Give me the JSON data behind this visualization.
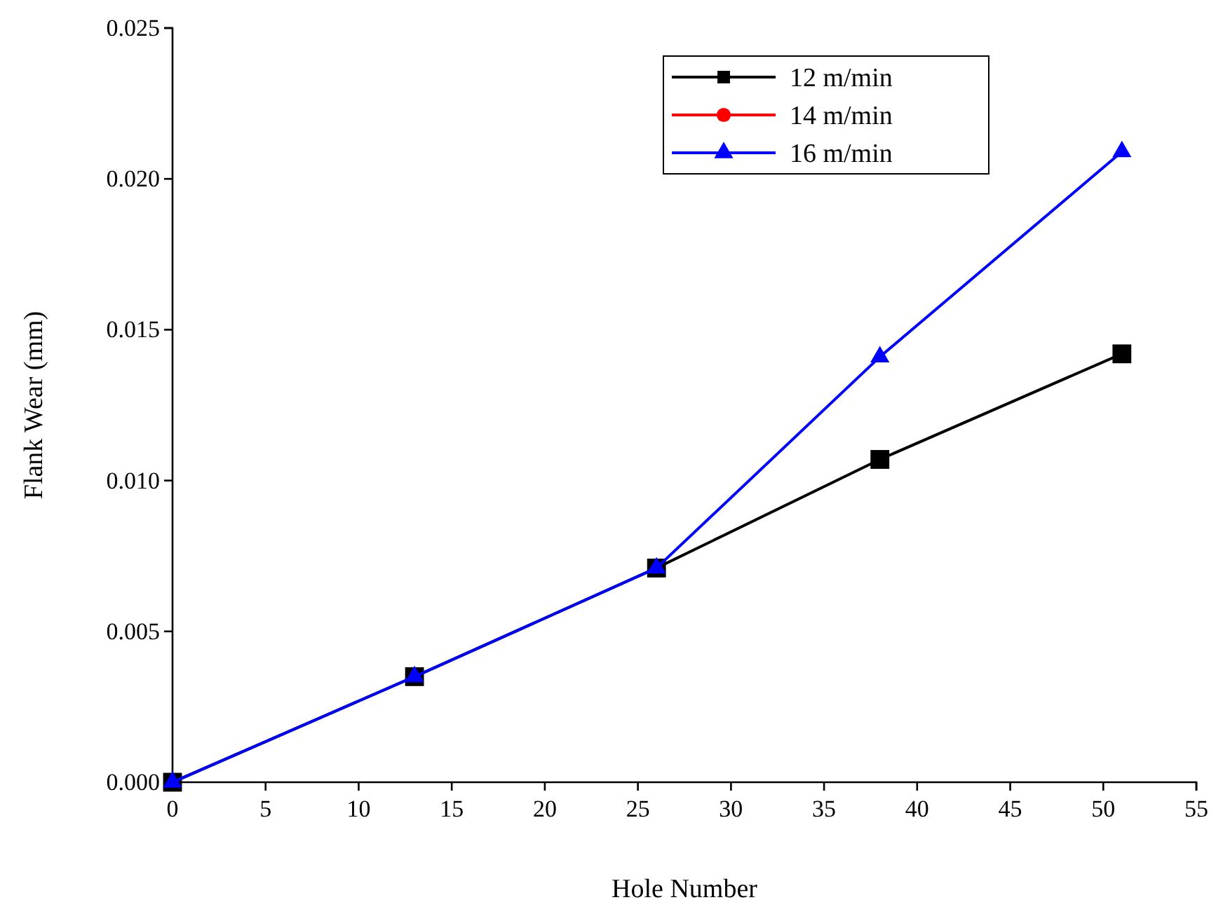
{
  "chart_data": {
    "type": "line",
    "xlabel": "Hole Number",
    "ylabel": "Flank Wear (mm)",
    "x": [
      0,
      13,
      26,
      38,
      51
    ],
    "series": [
      {
        "name": "12 m/min",
        "color": "#000000",
        "marker": "square",
        "values": [
          0,
          0.0035,
          0.0071,
          0.0107,
          0.0142
        ]
      },
      {
        "name": "14 m/min",
        "color": "#ff0000",
        "marker": "circle",
        "values": [
          null,
          null,
          null,
          null,
          null
        ]
      },
      {
        "name": "16 m/min",
        "color": "#0000ff",
        "marker": "triangle",
        "values": [
          0,
          0.0035,
          0.0071,
          0.0141,
          0.0209
        ]
      }
    ],
    "xlim": [
      0,
      55
    ],
    "xticks": [
      0,
      5,
      10,
      15,
      20,
      25,
      30,
      35,
      40,
      45,
      50,
      55
    ],
    "ylim": [
      0,
      0.025
    ],
    "yticks": [
      {
        "value": 0,
        "label": "0.000"
      },
      {
        "value": 0.005,
        "label": "0.005"
      },
      {
        "value": 0.01,
        "label": "0.010"
      },
      {
        "value": 0.015,
        "label": "0.015"
      },
      {
        "value": 0.02,
        "label": "0.020"
      },
      {
        "value": 0.025,
        "label": "0.025"
      }
    ],
    "legend": "top right",
    "grid": false,
    "line_style": "solid"
  }
}
